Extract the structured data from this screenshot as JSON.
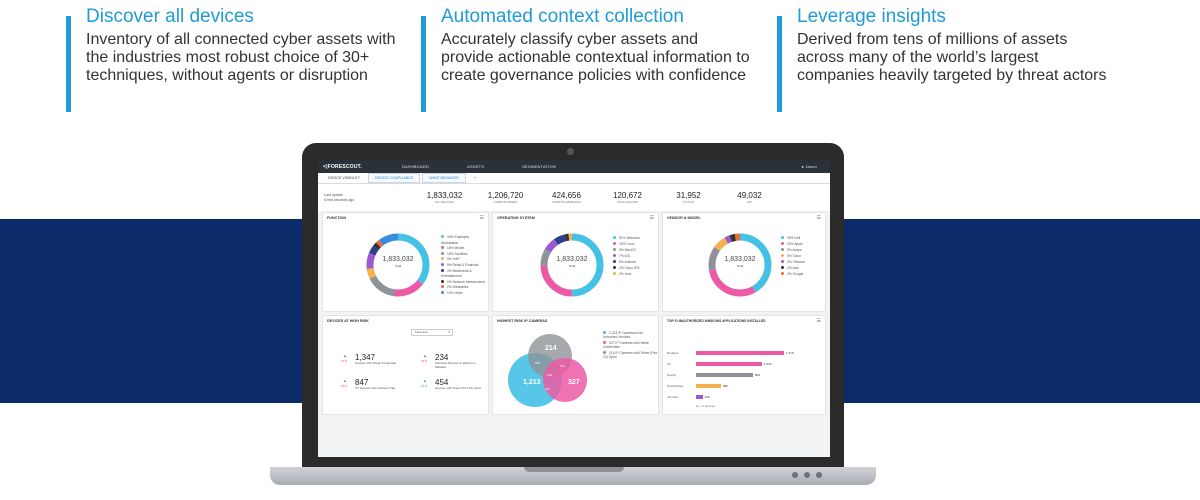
{
  "features": [
    {
      "title": "Discover all devices",
      "body": "Inventory of all connected cyber assets with the industries most robust choice of 30+ techniques, without agents or disruption"
    },
    {
      "title": "Automated context collection",
      "body": "Accurately classify cyber assets and provide actionable contextual information to create governance policies with confidence"
    },
    {
      "title": "Leverage insights",
      "body": "Derived from tens of millions of assets across many of the world’s largest companies heavily targeted by threat actors"
    }
  ],
  "app": {
    "logo": "<|FORESCOUT.",
    "nav": [
      "DASHBOARD",
      "ASSETS",
      "SEGMENTATION"
    ],
    "user": "Jason",
    "tabs": [
      "DEVICE VISIBILITY",
      "DEVICE COMPLIANCE",
      "WHAT BEHAVIOR"
    ],
    "tab_add": "+",
    "last_update_label": "Last update",
    "last_update_value": "A few seconds ago",
    "stats": [
      {
        "value": "1,833,032",
        "label": "ALL DEVICES"
      },
      {
        "value": "1,206,720",
        "label": "CAMPUS WIRED"
      },
      {
        "value": "424,656",
        "label": "CAMPUS WIRELESS"
      },
      {
        "value": "120,672",
        "label": "DATA CENTER"
      },
      {
        "value": "31,952",
        "label": "CLOUD"
      },
      {
        "value": "49,032",
        "label": "IOT"
      }
    ],
    "panels": {
      "function": {
        "title": "FUNCTION",
        "center_value": "1,833,032",
        "center_label": "Total",
        "legend": [
          "34% Employee Workstation",
          "16% Mobile",
          "15% Facilities",
          "5% VoIP",
          "8% Retail & Financial",
          "4% Multimedia & Entertainment",
          "2% Network Infrastructure",
          "2% Wearables",
          "10% Other"
        ]
      },
      "os": {
        "title": "OPERATING SYSTEM",
        "center_value": "1,833,032",
        "center_label": "Total",
        "legend": [
          "51% Windows",
          "25% Linux",
          "9% MacOS",
          "7% iOS",
          "6% Android",
          "2% Cisco IOS",
          "2% Unix"
        ]
      },
      "vendor": {
        "title": "VENDOR & MODEL",
        "center_value": "1,833,032",
        "center_label": "Total",
        "legend": [
          "30% Dell",
          "22% Apple",
          "9% Avaya",
          "5% Cisco",
          "2% VMware",
          "2% Axis",
          "2% Google"
        ]
      },
      "risk": {
        "title": "DEVICES AT HIGH RISK",
        "dropdown": "Last Hour",
        "items": [
          {
            "value": "1,347",
            "label": "Devices with Weak Credentials",
            "pct": "21%"
          },
          {
            "value": "234",
            "label": "Windows Devices at Risk from Malware",
            "pct": "34%"
          },
          {
            "value": "847",
            "label": "OT Devices with Critical CVEs",
            "pct": "16%"
          },
          {
            "value": "454",
            "label": "Devices with Telnet (Port 23) Open",
            "pct": "14%"
          }
        ]
      },
      "cameras": {
        "title": "HIGHEST RISK IP CAMERAS",
        "venn": {
          "a": "1,213",
          "b": "214",
          "c": "327",
          "ab": "578",
          "bc": "161",
          "ac": "212",
          "abc": "136"
        },
        "legend": [
          "1,213 IP Cameras from Untrusted Vendors",
          "327 IP Cameras with Weak Credentials",
          "214 IP Cameras with Telnet (Port 23) Open"
        ]
      },
      "apps": {
        "title": "TOP 5 UNAUTHORIZED WINDOWS APPLICATIONS INSTALLED",
        "bars": [
          {
            "label": "Dropbox",
            "value": 1378,
            "display": "1,378"
          },
          {
            "label": "Tor",
            "value": 1034,
            "display": "1,034"
          },
          {
            "label": "Spotify",
            "value": 893,
            "display": "893"
          },
          {
            "label": "TeamViewer",
            "value": 389,
            "display": "389"
          },
          {
            "label": "uTorrent",
            "value": 105,
            "display": "105"
          }
        ],
        "footer": "No. of devices"
      }
    }
  },
  "colors": {
    "accent": "#1f9bd7",
    "band": "#0b2b6b",
    "cyan": "#45c1e6",
    "pink": "#ec5aa6",
    "grey": "#8f9399",
    "orange": "#f4b24e",
    "purple": "#9b59d0",
    "navy": "#2c3e8f",
    "blue": "#3b8be0"
  }
}
